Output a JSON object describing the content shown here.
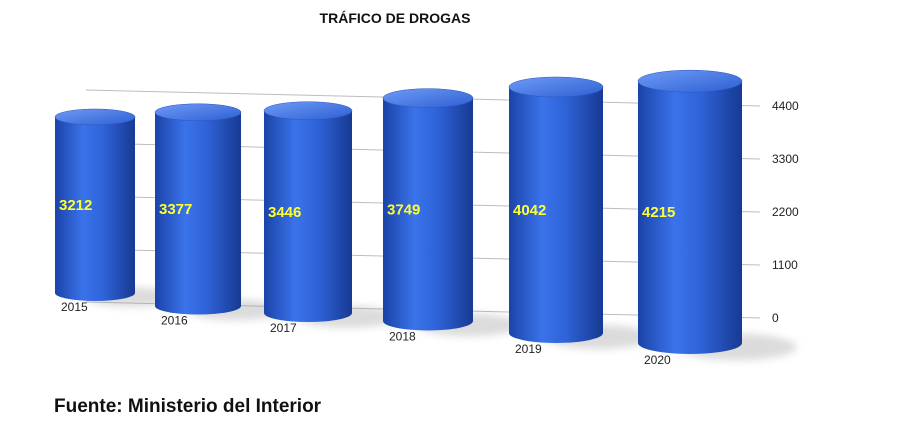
{
  "source_note": "Fuente: Ministerio del Interior",
  "chart_data": {
    "type": "bar",
    "title": "TRÁFICO DE DROGAS",
    "xlabel": "",
    "ylabel": "",
    "categories": [
      "2015",
      "2016",
      "2017",
      "2018",
      "2019",
      "2020"
    ],
    "values": [
      3212,
      3377,
      3446,
      3749,
      4042,
      4215
    ],
    "ylim": [
      0,
      4400
    ],
    "yticks": [
      "0",
      "1100",
      "2200",
      "3300",
      "4400"
    ],
    "grid": true,
    "legend": "none",
    "bar_color": "#2f63d8",
    "label_color": "#ffff33"
  }
}
